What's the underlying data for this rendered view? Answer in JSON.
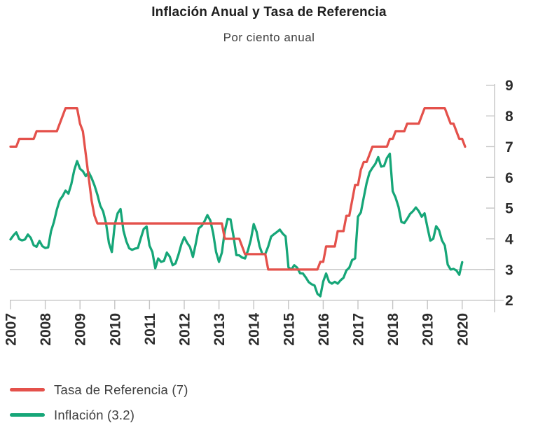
{
  "chart_data": {
    "type": "line",
    "title": "Inflación Anual y Tasa de Referencia",
    "subtitle": "Por ciento anual",
    "x_axis": {
      "unit": "year",
      "tick_labels": [
        "2007",
        "2008",
        "2009",
        "2010",
        "2011",
        "2012",
        "2013",
        "2014",
        "2015",
        "2016",
        "2017",
        "2018",
        "2019",
        "2020"
      ]
    },
    "y_axis": {
      "side": "right",
      "ticks": [
        9,
        8,
        7,
        6,
        5,
        4,
        3,
        2
      ],
      "range": [
        2,
        9
      ]
    },
    "reference_gridline_value": 3,
    "axis_color": "#c4c4c4",
    "legend_position": "bottom-left",
    "x_resolution": "monthly",
    "x_start": "2007-01",
    "series": [
      {
        "name": "Tasa de Referencia (7)",
        "last_value": 7,
        "color": "#e4514b",
        "values": [
          7,
          7,
          7,
          7.25,
          7.25,
          7.25,
          7.25,
          7.25,
          7.25,
          7.5,
          7.5,
          7.5,
          7.5,
          7.5,
          7.5,
          7.5,
          7.5,
          7.75,
          8,
          8.25,
          8.25,
          8.25,
          8.25,
          8.25,
          7.75,
          7.5,
          6.75,
          6,
          5.25,
          4.75,
          4.5,
          4.5,
          4.5,
          4.5,
          4.5,
          4.5,
          4.5,
          4.5,
          4.5,
          4.5,
          4.5,
          4.5,
          4.5,
          4.5,
          4.5,
          4.5,
          4.5,
          4.5,
          4.5,
          4.5,
          4.5,
          4.5,
          4.5,
          4.5,
          4.5,
          4.5,
          4.5,
          4.5,
          4.5,
          4.5,
          4.5,
          4.5,
          4.5,
          4.5,
          4.5,
          4.5,
          4.5,
          4.5,
          4.5,
          4.5,
          4.5,
          4.5,
          4.5,
          4.5,
          4,
          4,
          4,
          4,
          4,
          4,
          3.75,
          3.5,
          3.5,
          3.5,
          3.5,
          3.5,
          3.5,
          3.5,
          3.5,
          3,
          3,
          3,
          3,
          3,
          3,
          3,
          3,
          3,
          3,
          3,
          3,
          3,
          3,
          3,
          3,
          3,
          3,
          3.25,
          3.25,
          3.75,
          3.75,
          3.75,
          3.75,
          4.25,
          4.25,
          4.25,
          4.75,
          4.75,
          5.25,
          5.75,
          5.75,
          6.25,
          6.5,
          6.5,
          6.75,
          7,
          7,
          7,
          7,
          7,
          7,
          7.25,
          7.25,
          7.5,
          7.5,
          7.5,
          7.5,
          7.75,
          7.75,
          7.75,
          7.75,
          7.75,
          8,
          8.25,
          8.25,
          8.25,
          8.25,
          8.25,
          8.25,
          8.25,
          8.25,
          8,
          7.75,
          7.75,
          7.5,
          7.25,
          7.25,
          7
        ]
      },
      {
        "name": "Inflación (3.2)",
        "last_value": 3.2,
        "color": "#16a678",
        "values": [
          3.98,
          4.11,
          4.21,
          3.99,
          3.95,
          3.98,
          4.14,
          4.03,
          3.79,
          3.74,
          3.93,
          3.76,
          3.7,
          3.72,
          4.25,
          4.55,
          4.95,
          5.26,
          5.39,
          5.57,
          5.47,
          5.78,
          6.23,
          6.53,
          6.28,
          6.2,
          6.04,
          6.17,
          5.98,
          5.74,
          5.44,
          5.08,
          4.89,
          4.5,
          3.86,
          3.57,
          4.46,
          4.83,
          4.97,
          4.27,
          3.92,
          3.69,
          3.64,
          3.68,
          3.7,
          4.02,
          4.32,
          4.4,
          3.78,
          3.57,
          3.04,
          3.36,
          3.25,
          3.28,
          3.55,
          3.42,
          3.14,
          3.2,
          3.48,
          3.82,
          4.05,
          3.87,
          3.73,
          3.41,
          3.85,
          4.34,
          4.42,
          4.57,
          4.77,
          4.6,
          4.18,
          3.57,
          3.25,
          3.55,
          4.25,
          4.65,
          4.63,
          4.09,
          3.47,
          3.46,
          3.39,
          3.36,
          3.62,
          3.97,
          4.48,
          4.23,
          3.76,
          3.5,
          3.51,
          3.75,
          4.07,
          4.15,
          4.22,
          4.3,
          4.17,
          4.08,
          3.07,
          3,
          3.14,
          3.06,
          2.88,
          2.87,
          2.74,
          2.59,
          2.52,
          2.48,
          2.21,
          2.13,
          2.61,
          2.87,
          2.6,
          2.54,
          2.6,
          2.54,
          2.65,
          2.73,
          2.97,
          3.06,
          3.31,
          3.36,
          4.72,
          4.86,
          5.35,
          5.82,
          6.16,
          6.31,
          6.44,
          6.66,
          6.35,
          6.37,
          6.63,
          6.77,
          5.55,
          5.34,
          5.04,
          4.55,
          4.51,
          4.65,
          4.81,
          4.9,
          5.02,
          4.9,
          4.72,
          4.83,
          4.37,
          3.94,
          4,
          4.41,
          4.28,
          3.95,
          3.78,
          3.16,
          3,
          3.02,
          2.97,
          2.83,
          3.24
        ]
      }
    ]
  }
}
